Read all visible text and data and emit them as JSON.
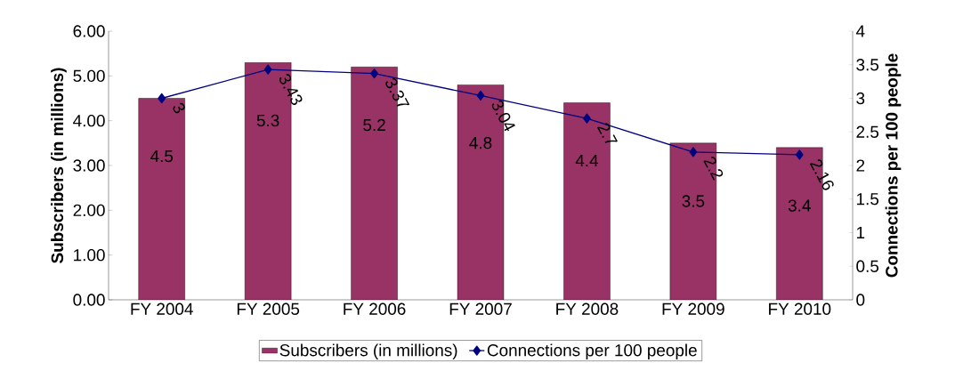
{
  "chart_data": {
    "type": "bar",
    "categories": [
      "FY 2004",
      "FY 2005",
      "FY 2006",
      "FY 2007",
      "FY 2008",
      "FY 2009",
      "FY 2010"
    ],
    "series": [
      {
        "name": "Subscribers (in millions)",
        "color": "#993366",
        "values": [
          4.5,
          5.3,
          5.2,
          4.8,
          4.4,
          3.5,
          3.4
        ]
      },
      {
        "name": "Connections per 100 people",
        "type": "line",
        "axis": "y2",
        "color": "#000080",
        "marker": "diamond",
        "values": [
          3,
          3.43,
          3.37,
          3.04,
          2.7,
          2.2,
          2.16
        ]
      }
    ],
    "ylabel": "Subscribers (in millions)",
    "y2label": "Connections per 100 people",
    "ylim": [
      0,
      6
    ],
    "yticks": [
      {
        "value": 0,
        "label": "0.00"
      },
      {
        "value": 1,
        "label": "1.00"
      },
      {
        "value": 2,
        "label": "2.00"
      },
      {
        "value": 3,
        "label": "3.00"
      },
      {
        "value": 4,
        "label": "4.00"
      },
      {
        "value": 5,
        "label": "5.00"
      },
      {
        "value": 6,
        "label": "6.00"
      }
    ],
    "y2lim": [
      0,
      4
    ],
    "y2ticks": [
      0,
      0.5,
      1,
      1.5,
      2,
      2.5,
      3,
      3.5,
      4
    ],
    "data_labels": true,
    "legend": "bottom",
    "grid": false
  }
}
